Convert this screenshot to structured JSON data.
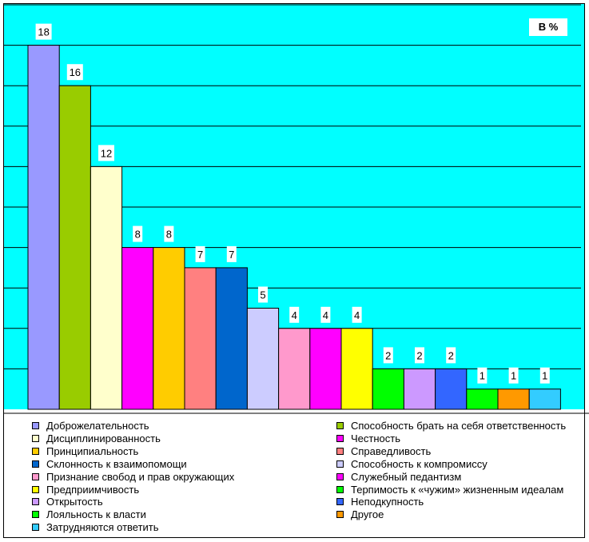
{
  "unit_label": "В %",
  "chart_data": {
    "type": "bar",
    "ylim": [
      0,
      20
    ],
    "grid": true,
    "legend_placement": "bottom",
    "background": "#00ffff",
    "categories": [
      "Доброжелательность",
      "Способность брать на себя ответственность",
      "Дисциплинированность",
      "Честность",
      "Принципиальность",
      "Справедливость",
      "Склонность к взаимопомощи",
      "Способность к компромиссу",
      "Признание свобод и прав окружающих",
      "Служебный педантизм",
      "Предприимчивость",
      "Терпимость к «чужим» жизненным идеалам",
      "Открытость",
      "Неподкупность",
      "Лояльность к власти",
      "Другое",
      "Затрудняются ответить"
    ],
    "values": [
      18,
      16,
      12,
      8,
      8,
      7,
      7,
      5,
      4,
      4,
      4,
      2,
      2,
      2,
      1,
      1,
      1
    ],
    "colors": [
      "#9999ff",
      "#99cc00",
      "#ffffcc",
      "#ff00ff",
      "#ffcc00",
      "#ff8080",
      "#0066cc",
      "#ccccff",
      "#ff99cc",
      "#ff00ff",
      "#ffff00",
      "#00ff00",
      "#cc99ff",
      "#3366ff",
      "#00ff00",
      "#ff9900",
      "#33ccff"
    ]
  }
}
